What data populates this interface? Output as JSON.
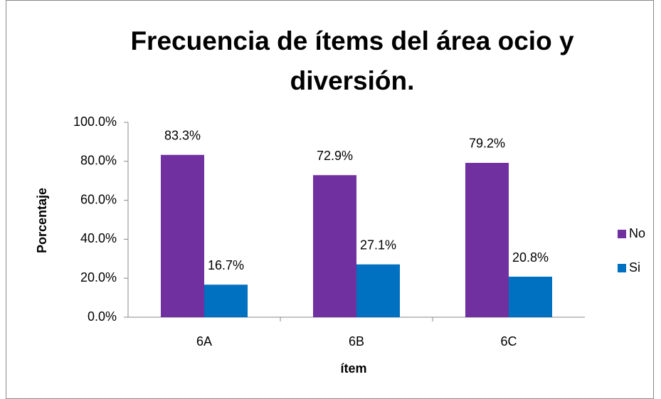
{
  "chart_data": {
    "type": "bar",
    "title": "Frecuencia de ítems del área ocio y diversión.",
    "x_label": "ítem",
    "y_label": "Porcentaje",
    "categories": [
      "6A",
      "6B",
      "6C"
    ],
    "series": [
      {
        "name": "No",
        "color": "#7030a0",
        "values": [
          83.3,
          72.9,
          79.2
        ],
        "value_labels": [
          "83.3%",
          "72.9%",
          "79.2%"
        ]
      },
      {
        "name": "Si",
        "color": "#0070c0",
        "values": [
          16.7,
          27.1,
          20.8
        ],
        "value_labels": [
          "16.7%",
          "27.1%",
          "20.8%"
        ]
      }
    ],
    "ylim": [
      0,
      100
    ],
    "yticks": [
      {
        "value": 0,
        "label": "0.0%"
      },
      {
        "value": 20,
        "label": "20.0%"
      },
      {
        "value": 40,
        "label": "40.0%"
      },
      {
        "value": 60,
        "label": "60.0%"
      },
      {
        "value": 80,
        "label": "80.0%"
      },
      {
        "value": 100,
        "label": "100.0%"
      }
    ],
    "grid": false,
    "legend": "right"
  }
}
